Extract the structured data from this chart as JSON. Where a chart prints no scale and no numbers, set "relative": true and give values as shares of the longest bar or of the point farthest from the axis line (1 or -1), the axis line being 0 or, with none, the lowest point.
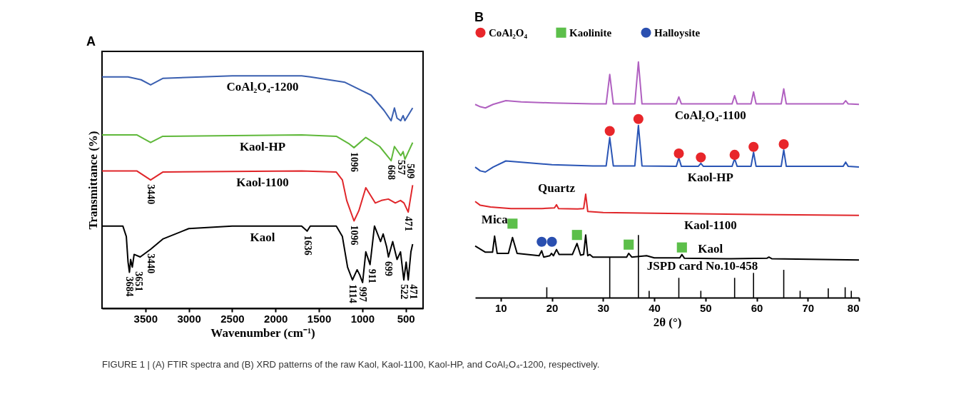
{
  "chart_data": [
    {
      "type": "line",
      "title": "A",
      "xlabel": "Wavenumber (cm⁻¹)",
      "ylabel": "Transmittance (%)",
      "relative": true,
      "xlim": [
        4000,
        300
      ],
      "xticks": [
        3500,
        3000,
        2500,
        2000,
        1500,
        1000,
        500
      ],
      "tick_labels": "x",
      "grid": false,
      "legend": false,
      "series": [
        {
          "name": "CoAl₂O₄-1200",
          "color": "#3a5fb0",
          "x": [
            4000,
            3700,
            3550,
            3440,
            3300,
            2500,
            1700,
            1600,
            1200,
            900,
            750,
            668,
            630,
            600,
            557,
            530,
            509,
            420
          ],
          "values": [
            0.995,
            0.995,
            0.983,
            0.961,
            0.989,
            1,
            1,
            0.995,
            0.972,
            0.917,
            0.851,
            0.807,
            0.862,
            0.818,
            0.807,
            0.829,
            0.807,
            0.862
          ]
        },
        {
          "name": "Kaol-HP",
          "color": "#5fb83a",
          "x": [
            4000,
            3600,
            3440,
            3300,
            1700,
            1300,
            1150,
            1096,
            960,
            800,
            668,
            630,
            557,
            530,
            509,
            420
          ],
          "values": [
            0.746,
            0.746,
            0.713,
            0.74,
            0.746,
            0.74,
            0.707,
            0.691,
            0.735,
            0.696,
            0.635,
            0.696,
            0.657,
            0.674,
            0.641,
            0.713
          ]
        },
        {
          "name": "Kaol-1100",
          "color": "#e0262a",
          "x": [
            4000,
            3600,
            3440,
            3300,
            1700,
            1300,
            1230,
            1180,
            1096,
            1040,
            960,
            850,
            780,
            700,
            620,
            560,
            520,
            471,
            420
          ],
          "values": [
            0.591,
            0.591,
            0.552,
            0.586,
            0.591,
            0.586,
            0.552,
            0.464,
            0.376,
            0.42,
            0.519,
            0.453,
            0.464,
            0.47,
            0.453,
            0.464,
            0.453,
            0.414,
            0.53
          ]
        },
        {
          "name": "Kaol",
          "color": "#000000",
          "x": [
            4000,
            3760,
            3720,
            3700,
            3684,
            3670,
            3651,
            3630,
            3560,
            3440,
            3300,
            3000,
            2500,
            1700,
            1636,
            1600,
            1300,
            1230,
            1170,
            1114,
            1060,
            1030,
            997,
            960,
            930,
            911,
            860,
            790,
            760,
            720,
            699,
            650,
            600,
            560,
            522,
            495,
            471,
            440,
            420
          ],
          "values": [
            0.354,
            0.354,
            0.309,
            0.199,
            0.155,
            0.21,
            0.177,
            0.232,
            0.221,
            0.254,
            0.298,
            0.343,
            0.354,
            0.354,
            0.332,
            0.354,
            0.354,
            0.309,
            0.177,
            0.122,
            0.166,
            0.144,
            0.111,
            0.243,
            0.21,
            0.188,
            0.354,
            0.287,
            0.32,
            0.265,
            0.221,
            0.287,
            0.21,
            0.243,
            0.122,
            0.199,
            0.122,
            0.243,
            0.276
          ]
        }
      ],
      "annotations": [
        {
          "text": "3440",
          "x": 3440,
          "y": 0.552
        },
        {
          "text": "1096",
          "x": 1096,
          "y": 0.691
        },
        {
          "text": "668",
          "x": 668,
          "y": 0.635
        },
        {
          "text": "557",
          "x": 557,
          "y": 0.657
        },
        {
          "text": "509",
          "x": 509,
          "y": 0.641
        },
        {
          "text": "1096",
          "x": 1096,
          "y": 0.376
        },
        {
          "text": "471",
          "x": 471,
          "y": 0.414
        },
        {
          "text": "3684",
          "x": 3684,
          "y": 0.155
        },
        {
          "text": "3651",
          "x": 3651,
          "y": 0.177
        },
        {
          "text": "3440",
          "x": 3440,
          "y": 0.254
        },
        {
          "text": "1636",
          "x": 1636,
          "y": 0.332
        },
        {
          "text": "1114",
          "x": 1114,
          "y": 0.122
        },
        {
          "text": "997",
          "x": 997,
          "y": 0.111
        },
        {
          "text": "911",
          "x": 911,
          "y": 0.188
        },
        {
          "text": "699",
          "x": 699,
          "y": 0.221
        },
        {
          "text": "522",
          "x": 522,
          "y": 0.122
        },
        {
          "text": "471",
          "x": 471,
          "y": 0.122
        }
      ]
    },
    {
      "type": "line",
      "title": "B",
      "xlabel": "2θ (°)",
      "relative": true,
      "xlim": [
        5,
        80
      ],
      "xticks": [
        10,
        20,
        30,
        40,
        50,
        60,
        70,
        80
      ],
      "tick_labels": "x",
      "grid": false,
      "legend": "top",
      "series": [
        {
          "name": "CoAl₂O₄-1100",
          "color": "#b060c0",
          "x": [
            5,
            6,
            7,
            8.5,
            11,
            14,
            20,
            28,
            30.6,
            31.3,
            32,
            36.2,
            36.9,
            37.6,
            44.3,
            44.8,
            45.3,
            49,
            55.2,
            55.7,
            56.2,
            58.9,
            59.4,
            59.9,
            64.8,
            65.3,
            65.8,
            76.9,
            77.4,
            77.9,
            80
          ],
          "values": [
            0.82,
            0.81,
            0.805,
            0.82,
            0.836,
            0.831,
            0.826,
            0.822,
            0.822,
            0.947,
            0.822,
            0.822,
            1,
            0.822,
            0.822,
            0.852,
            0.822,
            0.822,
            0.822,
            0.857,
            0.822,
            0.822,
            0.873,
            0.822,
            0.822,
            0.886,
            0.822,
            0.822,
            0.836,
            0.822,
            0.82
          ]
        },
        {
          "name": "Kaol-HP",
          "color": "#2a55b5",
          "x": [
            5,
            6,
            7,
            8.5,
            11,
            14,
            20,
            28,
            30.6,
            31.3,
            32,
            36.2,
            36.9,
            37.6,
            44.3,
            44.8,
            45.3,
            48.6,
            49.1,
            49.6,
            55.2,
            55.7,
            56.2,
            58.9,
            59.4,
            59.9,
            64.8,
            65.3,
            65.8,
            76.9,
            77.4,
            77.9,
            80
          ],
          "values": [
            0.554,
            0.538,
            0.533,
            0.554,
            0.58,
            0.575,
            0.564,
            0.559,
            0.559,
            0.679,
            0.559,
            0.559,
            0.731,
            0.559,
            0.557,
            0.593,
            0.557,
            0.557,
            0.57,
            0.557,
            0.557,
            0.59,
            0.557,
            0.557,
            0.617,
            0.557,
            0.557,
            0.627,
            0.557,
            0.557,
            0.575,
            0.557,
            0.554
          ]
        },
        {
          "name": "Kaol-1100",
          "color": "#e0262a",
          "x": [
            5,
            6,
            8,
            12,
            18,
            20.5,
            20.9,
            21.3,
            25,
            26.2,
            26.6,
            27.0,
            30,
            40,
            60,
            80
          ],
          "values": [
            0.408,
            0.392,
            0.385,
            0.378,
            0.378,
            0.381,
            0.394,
            0.378,
            0.376,
            0.378,
            0.439,
            0.366,
            0.361,
            0.358,
            0.353,
            0.349
          ]
        },
        {
          "name": "Kaol",
          "color": "#000000",
          "x": [
            5,
            7,
            8.4,
            8.8,
            9.3,
            11.5,
            12.3,
            13.2,
            17.5,
            18.0,
            18.4,
            19.6,
            19.9,
            20.3,
            20.9,
            21.4,
            24,
            24.9,
            25.6,
            26.2,
            26.6,
            27.0,
            27.4,
            28,
            34.6,
            35.0,
            35.6,
            38.5,
            40,
            45.0,
            45.4,
            45.9,
            55,
            62,
            62.4,
            63,
            80
          ],
          "values": [
            0.219,
            0.193,
            0.193,
            0.261,
            0.188,
            0.188,
            0.255,
            0.188,
            0.178,
            0.199,
            0.172,
            0.178,
            0.188,
            0.178,
            0.204,
            0.183,
            0.183,
            0.23,
            0.18,
            0.183,
            0.266,
            0.178,
            0.183,
            0.172,
            0.172,
            0.188,
            0.172,
            0.178,
            0.169,
            0.169,
            0.183,
            0.167,
            0.165,
            0.167,
            0.172,
            0.165,
            0.16
          ]
        },
        {
          "type": "bar",
          "name": "JSPD card No.10-458",
          "color": "#000000",
          "x": [
            19,
            31.3,
            36.9,
            39,
            44.8,
            49.1,
            55.7,
            59.4,
            65.3,
            68.5,
            74,
            77.3,
            78.5
          ],
          "values": [
            0.044,
            0.171,
            0.266,
            0.029,
            0.084,
            0.029,
            0.084,
            0.105,
            0.118,
            0.029,
            0.039,
            0.044,
            0.029
          ]
        },
        {
          "type": "scatter",
          "name": "CoAl₂O₄",
          "color": "#e8262a",
          "marker": "circle",
          "x": [
            31.3,
            36.9,
            44.8,
            49.1,
            55.7,
            59.4,
            65.3
          ],
          "values": [
            0.707,
            0.758,
            0.612,
            0.595,
            0.606,
            0.64,
            0.651
          ]
        },
        {
          "type": "scatter",
          "name": "Kaolinite",
          "color": "#5cbf4a",
          "marker": "square",
          "x": [
            12.3,
            24.9,
            35.0,
            45.4
          ],
          "values": [
            0.314,
            0.266,
            0.225,
            0.213
          ]
        },
        {
          "type": "scatter",
          "name": "Halloysite",
          "color": "#2a4fb0",
          "marker": "circle",
          "x": [
            18.0,
            20.0
          ],
          "values": [
            0.237,
            0.237
          ]
        }
      ],
      "annotations": [
        {
          "text": "Quartz",
          "x": 20.9,
          "y": 0.394
        },
        {
          "text": "Mica",
          "x": 8.8,
          "y": 0.261
        },
        "FIGURE 1 | (A) FTIR spectra and (B) XRD patterns of the raw Kaol, Kaol-1100, Kaol-HP, and CoAl₂O₄-1200, respectively."
      ]
    }
  ]
}
